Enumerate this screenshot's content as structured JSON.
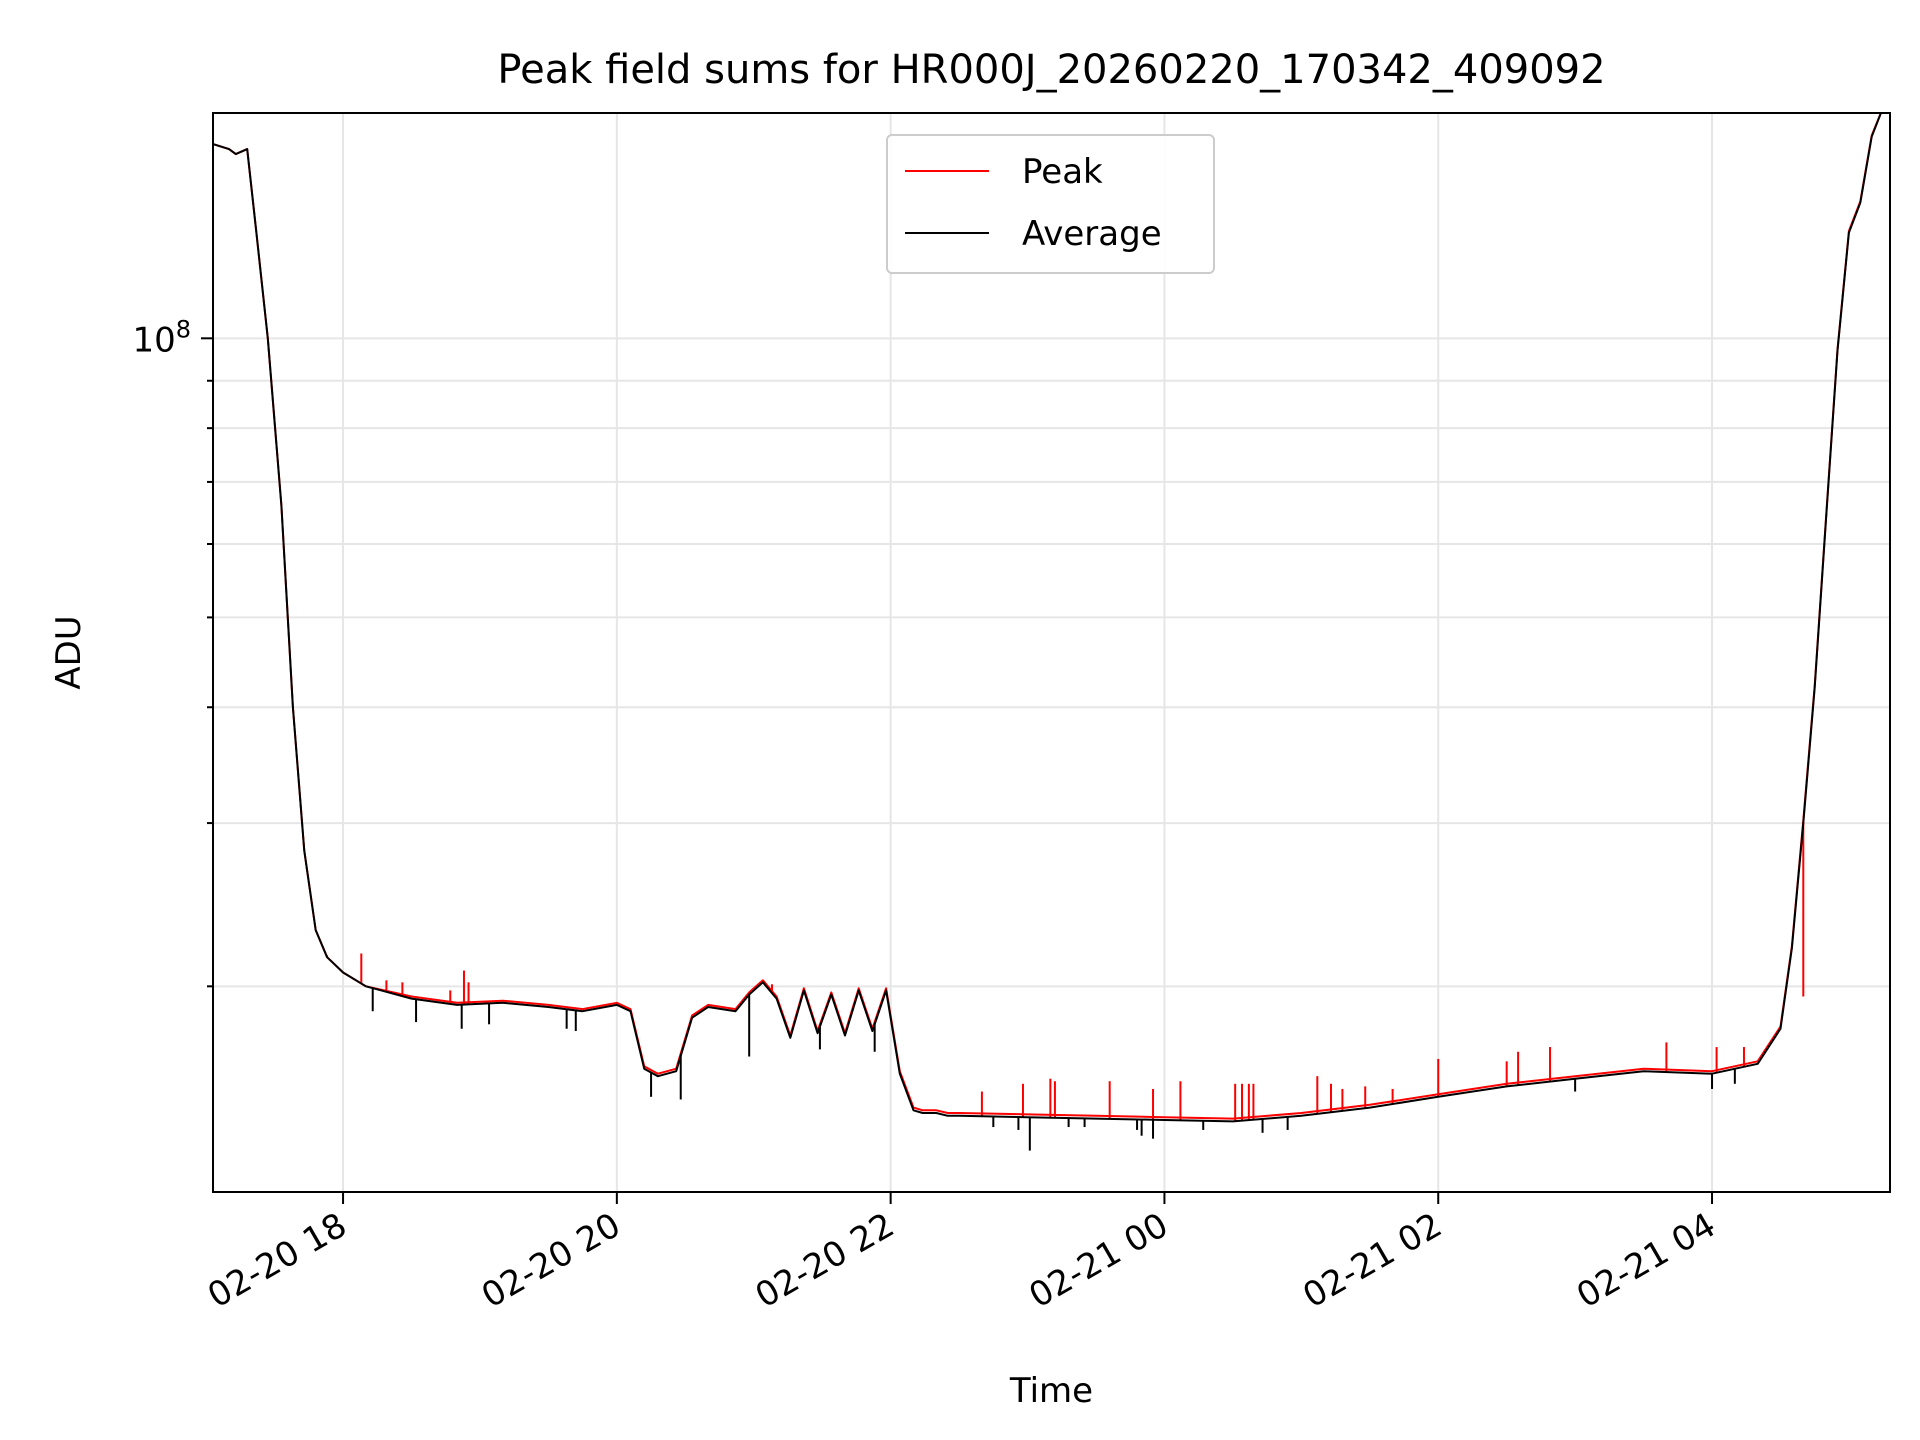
{
  "chart_data": {
    "type": "line",
    "title": "Peak field sums for HR000J_20260220_170342_409092",
    "xlabel": "Time",
    "ylabel": "ADU",
    "yscale": "log",
    "ylim": [
      12000000,
      175000000
    ],
    "ytick_major": [
      {
        "value": 100000000,
        "base": "10",
        "exp": "8"
      }
    ],
    "xlim": [
      "2026-02-20 17:03",
      "2026-02-21 05:18"
    ],
    "xticks": [
      {
        "t": "2026-02-20 18:00",
        "label": "02-20 18"
      },
      {
        "t": "2026-02-20 20:00",
        "label": "02-20 20"
      },
      {
        "t": "2026-02-20 22:00",
        "label": "02-20 22"
      },
      {
        "t": "2026-02-21 00:00",
        "label": "02-21 00"
      },
      {
        "t": "2026-02-21 02:00",
        "label": "02-21 02"
      },
      {
        "t": "2026-02-21 04:00",
        "label": "02-21 04"
      }
    ],
    "grid": true,
    "legend": {
      "position": "top-center",
      "entries": [
        {
          "name": "Peak",
          "color": "#ff0000"
        },
        {
          "name": "Average",
          "color": "#000000"
        }
      ]
    },
    "series": [
      {
        "name": "Average",
        "color": "#000000",
        "x": [
          "2026-02-20 17:03",
          "2026-02-20 17:10",
          "2026-02-20 17:13",
          "2026-02-20 17:18",
          "2026-02-20 17:22",
          "2026-02-20 17:27",
          "2026-02-20 17:33",
          "2026-02-20 17:38",
          "2026-02-20 17:43",
          "2026-02-20 17:48",
          "2026-02-20 17:53",
          "2026-02-20 18:00",
          "2026-02-20 18:10",
          "2026-02-20 18:30",
          "2026-02-20 18:50",
          "2026-02-20 19:10",
          "2026-02-20 19:30",
          "2026-02-20 19:45",
          "2026-02-20 20:00",
          "2026-02-20 20:06",
          "2026-02-20 20:12",
          "2026-02-20 20:18",
          "2026-02-20 20:26",
          "2026-02-20 20:33",
          "2026-02-20 20:40",
          "2026-02-20 20:46",
          "2026-02-20 20:52",
          "2026-02-20 20:58",
          "2026-02-20 21:04",
          "2026-02-20 21:10",
          "2026-02-20 21:16",
          "2026-02-20 21:22",
          "2026-02-20 21:28",
          "2026-02-20 21:34",
          "2026-02-20 21:40",
          "2026-02-20 21:46",
          "2026-02-20 21:52",
          "2026-02-20 21:58",
          "2026-02-20 22:04",
          "2026-02-20 22:10",
          "2026-02-20 22:14",
          "2026-02-20 22:20",
          "2026-02-20 22:25",
          "2026-02-20 22:30",
          "2026-02-20 23:00",
          "2026-02-20 23:30",
          "2026-02-21 00:00",
          "2026-02-21 00:30",
          "2026-02-21 01:00",
          "2026-02-21 01:30",
          "2026-02-21 02:00",
          "2026-02-21 02:30",
          "2026-02-21 03:00",
          "2026-02-21 03:30",
          "2026-02-21 04:00",
          "2026-02-21 04:20",
          "2026-02-21 04:30",
          "2026-02-21 04:35",
          "2026-02-21 04:40",
          "2026-02-21 04:45",
          "2026-02-21 04:50",
          "2026-02-21 04:55",
          "2026-02-21 05:00",
          "2026-02-21 05:05",
          "2026-02-21 05:10",
          "2026-02-21 05:14"
        ],
        "y": [
          162000000,
          160000000,
          158000000,
          160000000,
          130000000,
          100000000,
          66000000,
          40000000,
          28000000,
          23000000,
          21500000,
          20700000,
          20000000,
          19400000,
          19100000,
          19200000,
          19000000,
          18800000,
          19100000,
          18800000,
          16300000,
          16000000,
          16200000,
          18500000,
          19000000,
          18900000,
          18800000,
          19600000,
          20200000,
          19400000,
          17600000,
          19800000,
          17800000,
          19600000,
          17700000,
          19800000,
          17900000,
          19800000,
          16100000,
          14700000,
          14600000,
          14600000,
          14500000,
          14500000,
          14450000,
          14400000,
          14350000,
          14300000,
          14500000,
          14800000,
          15200000,
          15600000,
          15900000,
          16200000,
          16100000,
          16500000,
          18000000,
          22000000,
          30000000,
          42000000,
          64000000,
          97000000,
          130000000,
          140000000,
          165000000,
          180000000
        ]
      },
      {
        "name": "Peak",
        "color": "#ff0000",
        "x": [
          "2026-02-20 17:03",
          "2026-02-20 17:10",
          "2026-02-20 17:13",
          "2026-02-20 17:18",
          "2026-02-20 17:22",
          "2026-02-20 17:27",
          "2026-02-20 17:33",
          "2026-02-20 17:38",
          "2026-02-20 17:43",
          "2026-02-20 17:48",
          "2026-02-20 17:53",
          "2026-02-20 18:00",
          "2026-02-20 18:10",
          "2026-02-20 18:30",
          "2026-02-20 18:50",
          "2026-02-20 19:10",
          "2026-02-20 19:30",
          "2026-02-20 19:45",
          "2026-02-20 20:00",
          "2026-02-20 20:06",
          "2026-02-20 20:12",
          "2026-02-20 20:18",
          "2026-02-20 20:26",
          "2026-02-20 20:33",
          "2026-02-20 20:40",
          "2026-02-20 20:46",
          "2026-02-20 20:52",
          "2026-02-20 20:58",
          "2026-02-20 21:04",
          "2026-02-20 21:10",
          "2026-02-20 21:16",
          "2026-02-20 21:22",
          "2026-02-20 21:28",
          "2026-02-20 21:34",
          "2026-02-20 21:40",
          "2026-02-20 21:46",
          "2026-02-20 21:52",
          "2026-02-20 21:58",
          "2026-02-20 22:04",
          "2026-02-20 22:10",
          "2026-02-20 22:14",
          "2026-02-20 22:20",
          "2026-02-20 22:25",
          "2026-02-20 22:30",
          "2026-02-20 23:00",
          "2026-02-20 23:30",
          "2026-02-21 00:00",
          "2026-02-21 00:30",
          "2026-02-21 01:00",
          "2026-02-21 01:30",
          "2026-02-21 02:00",
          "2026-02-21 02:30",
          "2026-02-21 03:00",
          "2026-02-21 03:30",
          "2026-02-21 04:00",
          "2026-02-21 04:20",
          "2026-02-21 04:30",
          "2026-02-21 04:35",
          "2026-02-21 04:40",
          "2026-02-21 04:45",
          "2026-02-21 04:50",
          "2026-02-21 04:55",
          "2026-02-21 05:00",
          "2026-02-21 05:05",
          "2026-02-21 05:10",
          "2026-02-21 05:14"
        ],
        "y": [
          162000000,
          160000000,
          158000000,
          160000000,
          130000000,
          100000000,
          66000000,
          40000000,
          28000000,
          23000000,
          21500000,
          20700000,
          20000000,
          19500000,
          19200000,
          19300000,
          19100000,
          18900000,
          19200000,
          18900000,
          16400000,
          16100000,
          16300000,
          18600000,
          19100000,
          19000000,
          18900000,
          19700000,
          20300000,
          19500000,
          17700000,
          19900000,
          17900000,
          19700000,
          17800000,
          19900000,
          18000000,
          19900000,
          16200000,
          14800000,
          14700000,
          14700000,
          14600000,
          14600000,
          14550000,
          14500000,
          14450000,
          14400000,
          14600000,
          14900000,
          15300000,
          15700000,
          16000000,
          16300000,
          16200000,
          16600000,
          18100000,
          22100000,
          30200000,
          42200000,
          64200000,
          97300000,
          130500000,
          140500000,
          165500000,
          180500000
        ]
      }
    ],
    "spikes_up": [
      {
        "t": "2026-02-20 17:53",
        "y": 21600000
      },
      {
        "t": "2026-02-20 18:08",
        "y": 21700000
      },
      {
        "t": "2026-02-20 18:19",
        "y": 20300000
      },
      {
        "t": "2026-02-20 18:26",
        "y": 20200000
      },
      {
        "t": "2026-02-20 18:47",
        "y": 19800000
      },
      {
        "t": "2026-02-20 18:53",
        "y": 20800000
      },
      {
        "t": "2026-02-20 18:55",
        "y": 20200000
      },
      {
        "t": "2026-02-20 21:08",
        "y": 20100000
      },
      {
        "t": "2026-02-20 22:40",
        "y": 15400000
      },
      {
        "t": "2026-02-20 22:58",
        "y": 15700000
      },
      {
        "t": "2026-02-20 23:10",
        "y": 15900000
      },
      {
        "t": "2026-02-20 23:12",
        "y": 15800000
      },
      {
        "t": "2026-02-20 23:36",
        "y": 15800000
      },
      {
        "t": "2026-02-20 23:55",
        "y": 15500000
      },
      {
        "t": "2026-02-21 00:07",
        "y": 15800000
      },
      {
        "t": "2026-02-21 00:31",
        "y": 15700000
      },
      {
        "t": "2026-02-21 00:34",
        "y": 15700000
      },
      {
        "t": "2026-02-21 00:37",
        "y": 15700000
      },
      {
        "t": "2026-02-21 00:39",
        "y": 15700000
      },
      {
        "t": "2026-02-21 01:07",
        "y": 16000000
      },
      {
        "t": "2026-02-21 01:13",
        "y": 15700000
      },
      {
        "t": "2026-02-21 01:18",
        "y": 15500000
      },
      {
        "t": "2026-02-21 01:28",
        "y": 15600000
      },
      {
        "t": "2026-02-21 01:40",
        "y": 15500000
      },
      {
        "t": "2026-02-21 02:00",
        "y": 16700000
      },
      {
        "t": "2026-02-21 02:30",
        "y": 16600000
      },
      {
        "t": "2026-02-21 02:35",
        "y": 17000000
      },
      {
        "t": "2026-02-21 02:49",
        "y": 17200000
      },
      {
        "t": "2026-02-21 03:40",
        "y": 17400000
      },
      {
        "t": "2026-02-21 04:02",
        "y": 17200000
      },
      {
        "t": "2026-02-21 04:14",
        "y": 17200000
      },
      {
        "t": "2026-02-21 04:40",
        "y": 19500000
      }
    ],
    "spikes_down": [
      {
        "t": "2026-02-20 18:13",
        "y": 18800000
      },
      {
        "t": "2026-02-20 18:32",
        "y": 18300000
      },
      {
        "t": "2026-02-20 18:52",
        "y": 18000000
      },
      {
        "t": "2026-02-20 19:04",
        "y": 18200000
      },
      {
        "t": "2026-02-20 19:38",
        "y": 18000000
      },
      {
        "t": "2026-02-20 19:42",
        "y": 17900000
      },
      {
        "t": "2026-02-20 20:15",
        "y": 15200000
      },
      {
        "t": "2026-02-20 20:28",
        "y": 15100000
      },
      {
        "t": "2026-02-20 20:58",
        "y": 16800000
      },
      {
        "t": "2026-02-20 21:29",
        "y": 17100000
      },
      {
        "t": "2026-02-20 21:53",
        "y": 17000000
      },
      {
        "t": "2026-02-20 22:45",
        "y": 14100000
      },
      {
        "t": "2026-02-20 22:56",
        "y": 14000000
      },
      {
        "t": "2026-02-20 23:01",
        "y": 13300000
      },
      {
        "t": "2026-02-20 23:18",
        "y": 14100000
      },
      {
        "t": "2026-02-20 23:25",
        "y": 14100000
      },
      {
        "t": "2026-02-20 23:48",
        "y": 14000000
      },
      {
        "t": "2026-02-20 23:50",
        "y": 13800000
      },
      {
        "t": "2026-02-20 23:55",
        "y": 13700000
      },
      {
        "t": "2026-02-21 00:17",
        "y": 14000000
      },
      {
        "t": "2026-02-21 00:43",
        "y": 13900000
      },
      {
        "t": "2026-02-21 00:54",
        "y": 14000000
      },
      {
        "t": "2026-02-21 03:00",
        "y": 15400000
      },
      {
        "t": "2026-02-21 04:00",
        "y": 15500000
      },
      {
        "t": "2026-02-21 04:10",
        "y": 15700000
      }
    ]
  }
}
